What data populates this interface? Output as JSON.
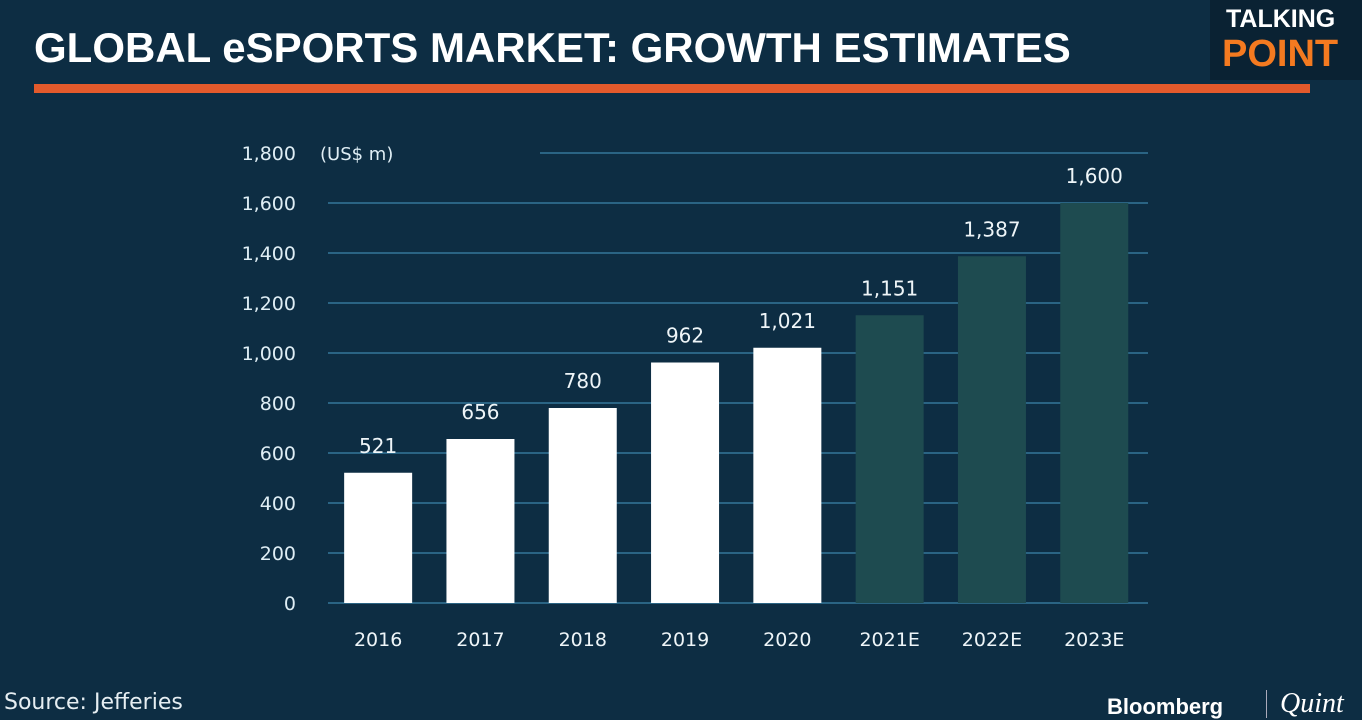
{
  "header": {
    "title": "GLOBAL eSPORTS MARKET: GROWTH ESTIMATES",
    "accent_color": "#e25a2c"
  },
  "logo": {
    "line1": "TALKING",
    "line2": "POINT"
  },
  "footer": {
    "source": "Source: Jefferies",
    "brand_primary": "Bloomberg",
    "brand_secondary": "Quint"
  },
  "chart_data": {
    "type": "bar",
    "title": "",
    "unit_label": "(US$ m)",
    "categories": [
      "2016",
      "2017",
      "2018",
      "2019",
      "2020",
      "2021E",
      "2022E",
      "2023E"
    ],
    "values": [
      521,
      656,
      780,
      962,
      1021,
      1151,
      1387,
      1600
    ],
    "value_labels": [
      "521",
      "656",
      "780",
      "962",
      "1,021",
      "1,151",
      "1,387",
      "1,600"
    ],
    "estimate": [
      false,
      false,
      false,
      false,
      false,
      true,
      true,
      true
    ],
    "colors": {
      "actual": "#ffffff",
      "estimate": "#1e4b50",
      "grid": "#2a6484",
      "background": "#0d2d43"
    },
    "ylim": [
      0,
      1800
    ],
    "yticks": [
      0,
      200,
      400,
      600,
      800,
      1000,
      1200,
      1400,
      1600,
      1800
    ],
    "ytick_labels": [
      "0",
      "200",
      "400",
      "600",
      "800",
      "1,000",
      "1,200",
      "1,400",
      "1,600",
      "1,800"
    ],
    "grid": true,
    "legend": "none"
  }
}
